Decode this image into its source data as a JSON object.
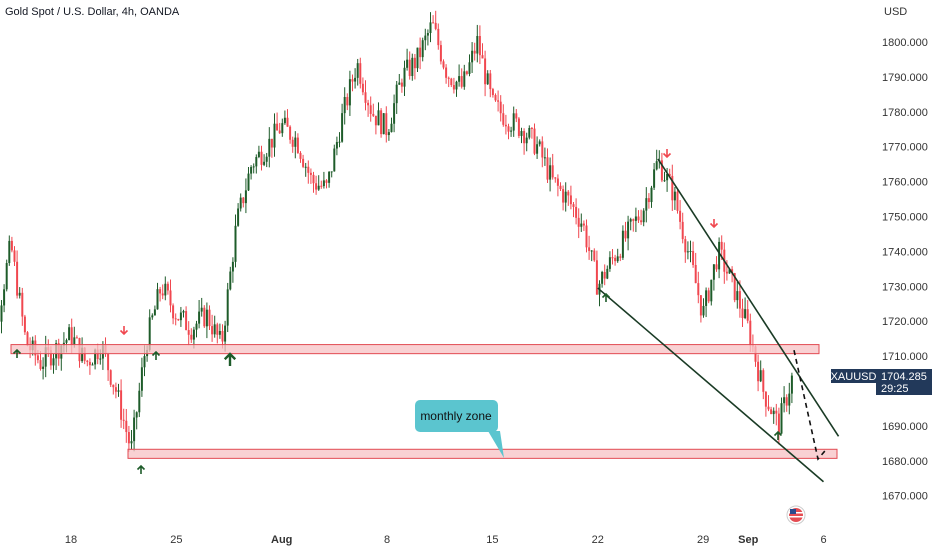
{
  "header": {
    "title": "Gold Spot / U.S. Dollar, 4h, OANDA",
    "currency": "USD"
  },
  "price_badge": {
    "symbol": "XAUUSD",
    "price": "1704.285",
    "countdown": "29:25",
    "color": "#22395a"
  },
  "annotation": {
    "text": "monthly zone",
    "color": "#5bc5cf"
  },
  "icons": {
    "flag": "us-flag-icon"
  },
  "colors": {
    "up": "#1e5c2a",
    "down": "#f0474f",
    "zone_fill": "#f7c1c4",
    "zone_border": "#e24b53",
    "trendline": "#1a3b25",
    "arrow_up": "#1e5c2a",
    "arrow_down": "#f0474f"
  },
  "chart_data": {
    "type": "candlestick",
    "symbol": "XAUUSD",
    "timeframe": "4h",
    "y_range": [
      1666,
      1808
    ],
    "y_ticks": [
      "1800.000",
      "1790.000",
      "1780.000",
      "1770.000",
      "1760.000",
      "1750.000",
      "1740.000",
      "1730.000",
      "1720.000",
      "1710.000",
      "1700.000",
      "1690.000",
      "1680.000",
      "1670.000"
    ],
    "x_ticks": [
      "18",
      "25",
      "Aug",
      "8",
      "15",
      "22",
      "29",
      "Sep",
      "6"
    ],
    "zones": [
      {
        "low": 1710.7,
        "high": 1713.3
      },
      {
        "low": 1680.7,
        "high": 1683.3
      }
    ],
    "trendlines": [
      {
        "from": [
          "Aug 22",
          1729.5
        ],
        "to": [
          "Sep 6",
          1674.0
        ]
      },
      {
        "from": [
          "Aug 26",
          1766.5
        ],
        "to": [
          "Sep 7",
          1687.0
        ]
      }
    ],
    "projection": [
      1711.7,
      1680.5,
      1683.2
    ],
    "series_close_path": [
      [
        "Jul 12",
        1728
      ],
      [
        "Jul 13",
        1718
      ],
      [
        "Jul 14",
        1742
      ],
      [
        "Jul 15",
        1714
      ],
      [
        "Jul 16",
        1708
      ],
      [
        "Jul 17",
        1712
      ],
      [
        "Jul 18",
        1716
      ],
      [
        "Jul 19",
        1708
      ],
      [
        "Jul 20",
        1713
      ],
      [
        "Jul 21",
        1700
      ],
      [
        "Jul 22",
        1683
      ],
      [
        "Jul 23",
        1714
      ],
      [
        "Jul 24",
        1730
      ],
      [
        "Jul 25",
        1722
      ],
      [
        "Jul 26",
        1718
      ],
      [
        "Jul 27",
        1722
      ],
      [
        "Jul 28",
        1713
      ],
      [
        "Jul 29",
        1748
      ],
      [
        "Jul 30",
        1765
      ],
      [
        "Jul 31",
        1770
      ],
      [
        "Aug 1",
        1776
      ],
      [
        "Aug 2",
        1772
      ],
      [
        "Aug 3",
        1760
      ],
      [
        "Aug 4",
        1758
      ],
      [
        "Aug 5",
        1778
      ],
      [
        "Aug 6",
        1794
      ],
      [
        "Aug 7",
        1780
      ],
      [
        "Aug 8",
        1775
      ],
      [
        "Aug 9",
        1790
      ],
      [
        "Aug 10",
        1795
      ],
      [
        "Aug 11",
        1805
      ],
      [
        "Aug 12",
        1791
      ],
      [
        "Aug 13",
        1787
      ],
      [
        "Aug 14",
        1800
      ],
      [
        "Aug 15",
        1782
      ],
      [
        "Aug 16",
        1778
      ],
      [
        "Aug 17",
        1775
      ],
      [
        "Aug 18",
        1770
      ],
      [
        "Aug 19",
        1760
      ],
      [
        "Aug 20",
        1755
      ],
      [
        "Aug 21",
        1748
      ],
      [
        "Aug 22",
        1730
      ],
      [
        "Aug 23",
        1738
      ],
      [
        "Aug 24",
        1745
      ],
      [
        "Aug 25",
        1752
      ],
      [
        "Aug 26",
        1766
      ],
      [
        "Aug 27",
        1757
      ],
      [
        "Aug 28",
        1740
      ],
      [
        "Aug 29",
        1722
      ],
      [
        "Aug 30",
        1740
      ],
      [
        "Aug 31",
        1730
      ],
      [
        "Sep 1",
        1718
      ],
      [
        "Sep 2",
        1700
      ],
      [
        "Sep 3",
        1690
      ],
      [
        "Sep 4",
        1705
      ]
    ]
  }
}
